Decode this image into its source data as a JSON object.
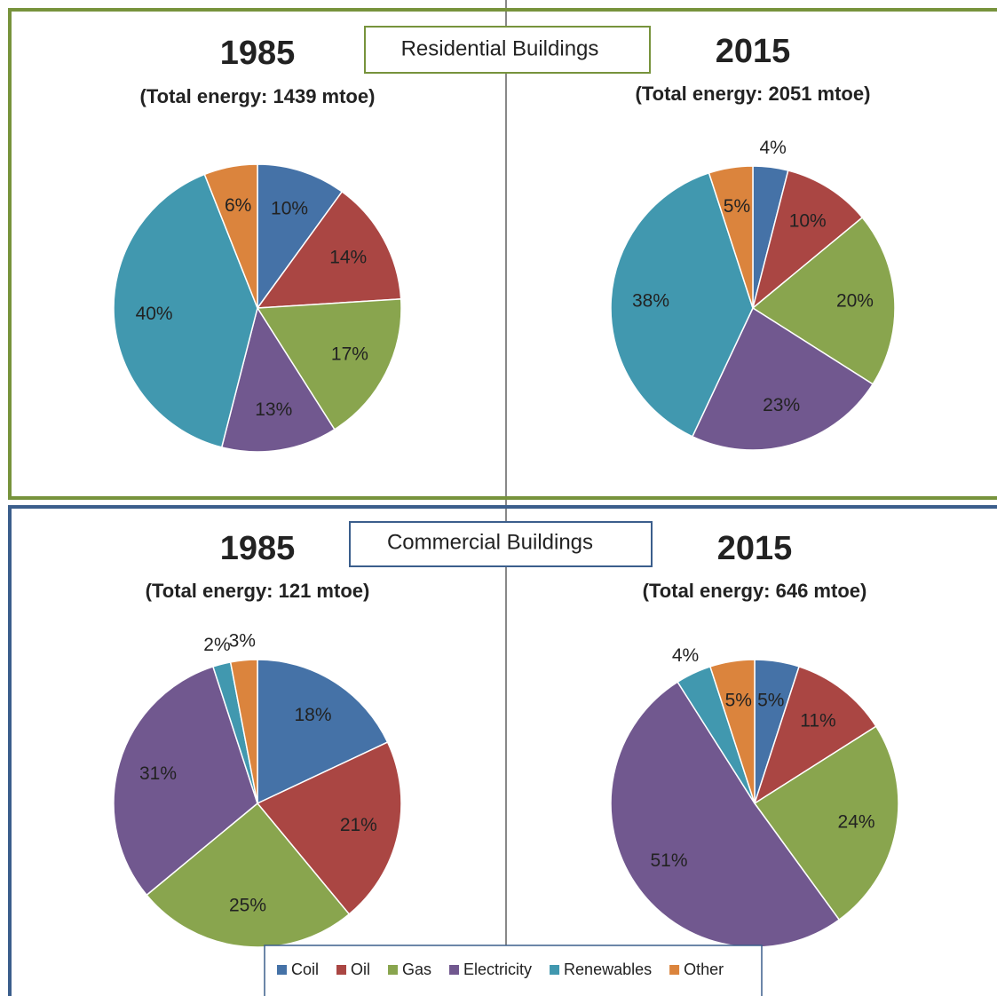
{
  "section_labels": [
    "Residential Buildings",
    "Commercial Buildings"
  ],
  "chart_data": [
    {
      "type": "pie",
      "title": "1985",
      "subtitle": "(Total energy: 1439 mtoe)",
      "categories": [
        "Coil",
        "Oil",
        "Gas",
        "Electricity",
        "Renewables",
        "Other"
      ],
      "values": [
        10,
        14,
        17,
        13,
        40,
        6
      ],
      "value_labels": [
        "10%",
        "14%",
        "17%",
        "13%",
        "40%",
        "6%"
      ],
      "colors": [
        "#4572a7",
        "#aa4643",
        "#89a54e",
        "#71588f",
        "#4198af",
        "#db843d"
      ]
    },
    {
      "type": "pie",
      "title": "2015",
      "subtitle": "(Total energy: 2051 mtoe)",
      "categories": [
        "Coil",
        "Oil",
        "Gas",
        "Electricity",
        "Renewables",
        "Other"
      ],
      "values": [
        4,
        10,
        20,
        23,
        38,
        5
      ],
      "value_labels": [
        "4%",
        "10%",
        "20%",
        "23%",
        "38%",
        "5%"
      ],
      "colors": [
        "#4572a7",
        "#aa4643",
        "#89a54e",
        "#71588f",
        "#4198af",
        "#db843d"
      ]
    },
    {
      "type": "pie",
      "title": "1985",
      "subtitle": "(Total energy: 121 mtoe)",
      "categories": [
        "Coil",
        "Oil",
        "Gas",
        "Electricity",
        "Renewables",
        "Other"
      ],
      "values": [
        18,
        21,
        25,
        31,
        2,
        3
      ],
      "value_labels": [
        "18%",
        "21%",
        "25%",
        "31%",
        "2%",
        "3%"
      ],
      "colors": [
        "#4572a7",
        "#aa4643",
        "#89a54e",
        "#71588f",
        "#4198af",
        "#db843d"
      ]
    },
    {
      "type": "pie",
      "title": "2015",
      "subtitle": "(Total energy: 646 mtoe)",
      "categories": [
        "Coil",
        "Oil",
        "Gas",
        "Electricity",
        "Renewables",
        "Other"
      ],
      "values": [
        5,
        11,
        24,
        51,
        4,
        5
      ],
      "value_labels": [
        "5%",
        "11%",
        "24%",
        "51%",
        "4%",
        "5%"
      ],
      "colors": [
        "#4572a7",
        "#aa4643",
        "#89a54e",
        "#71588f",
        "#4198af",
        "#db843d"
      ]
    }
  ]
}
